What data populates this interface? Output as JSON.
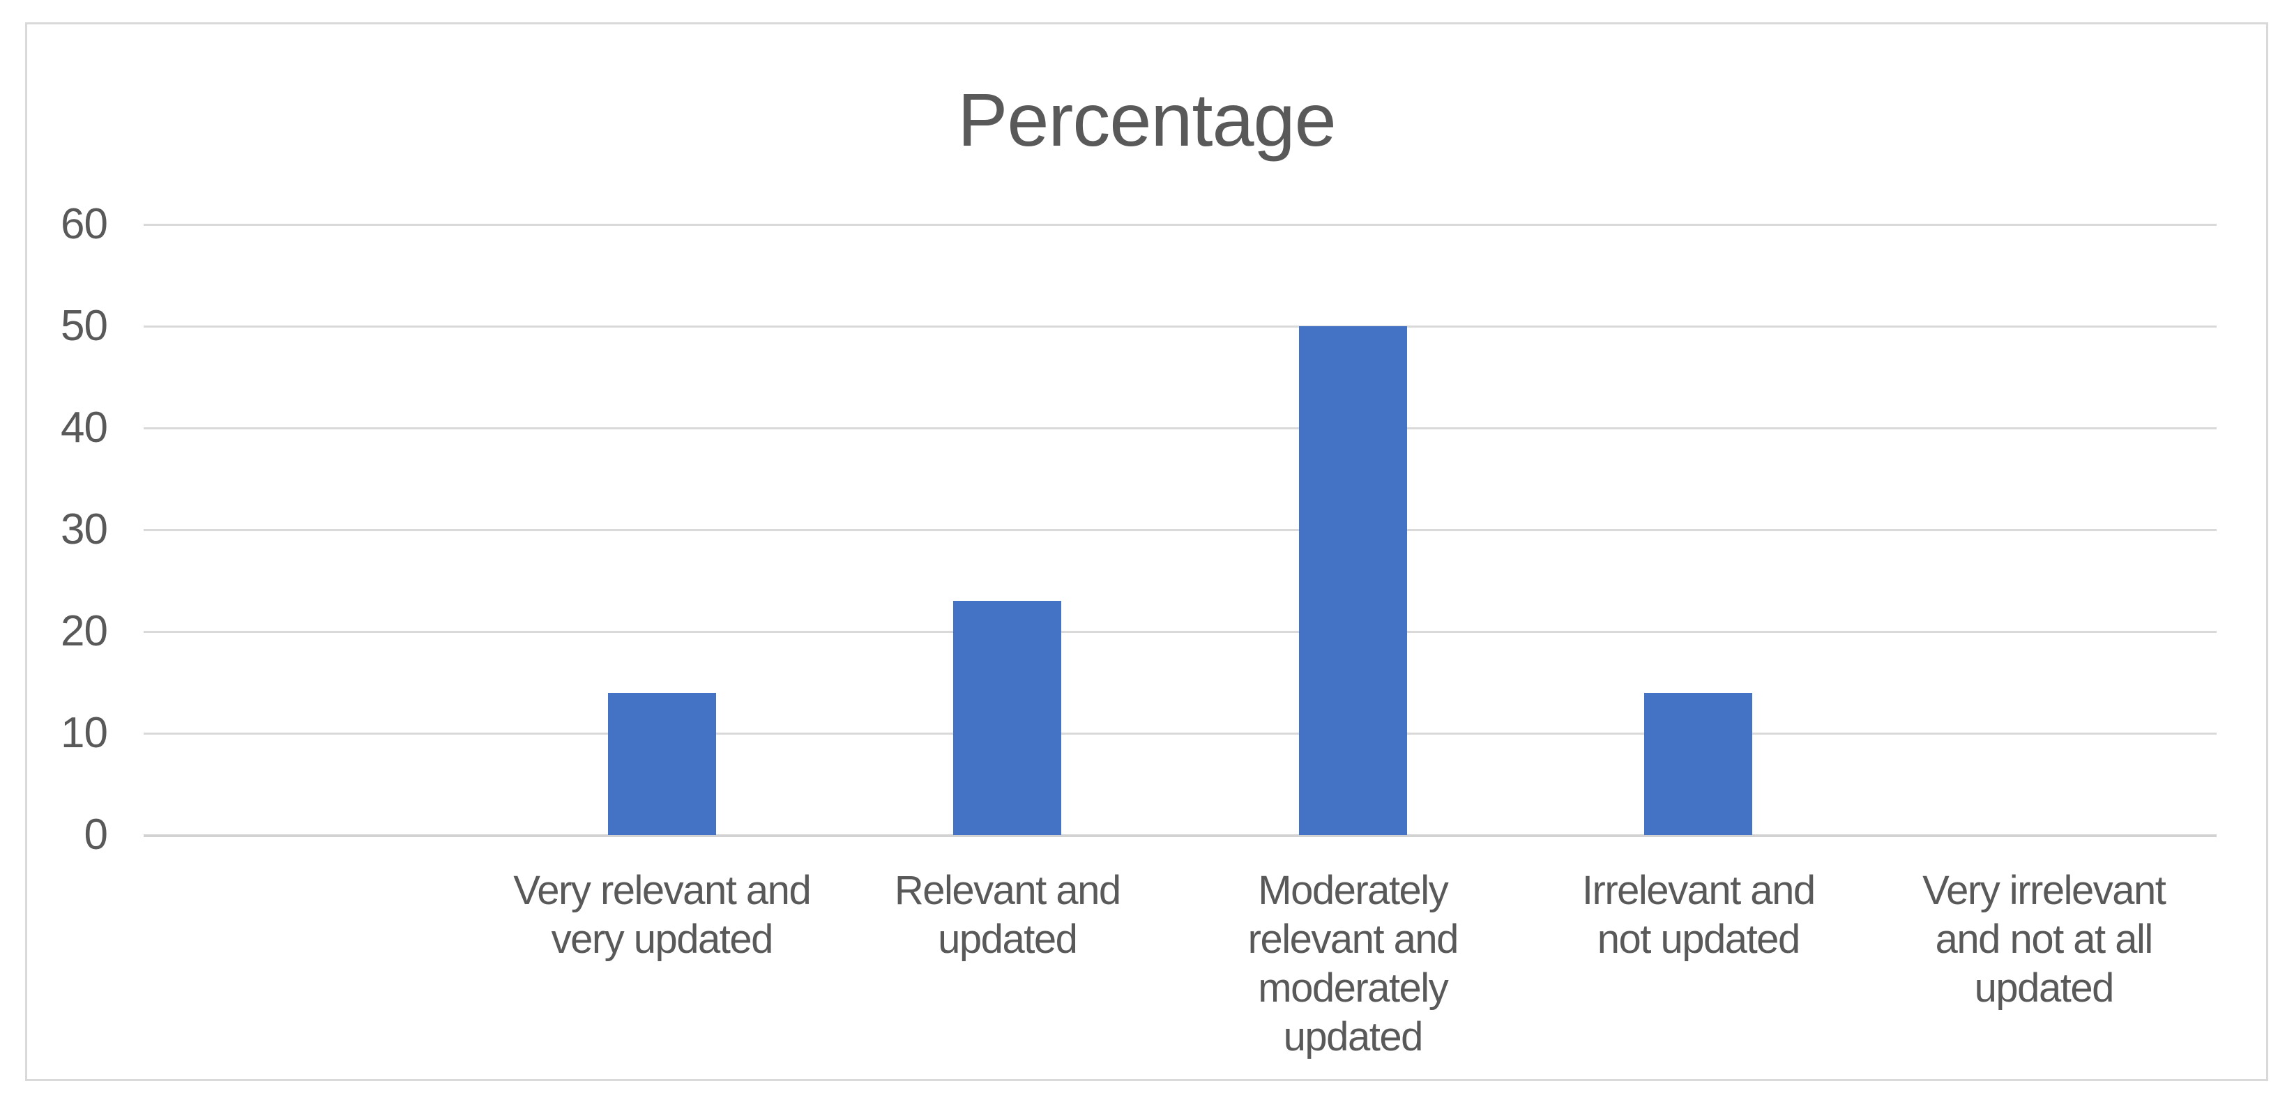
{
  "chart_data": {
    "type": "bar",
    "title": "Percentage",
    "categories": [
      "Very relevant and very updated",
      "Relevant and updated",
      "Moderately relevant and moderately updated",
      "Irrelevant and not updated",
      "Very irrelevant and not at all updated"
    ],
    "values": [
      14,
      23,
      50,
      14,
      0
    ],
    "xlabel": "",
    "ylabel": "",
    "ylim": [
      0,
      60
    ],
    "yticks": [
      0,
      10,
      20,
      30,
      40,
      50,
      60
    ],
    "grid": true,
    "legend_position": "none",
    "bar_color": "#4472C4",
    "gridline_color": "#D9D9D9",
    "axis_line_color": "#D2D2D2",
    "text_color": "#595959",
    "frame_border_color": "#D9D9D9",
    "background_color": "#FFFFFF",
    "layout": {
      "leading_empty_slot": true,
      "total_category_slots": 6,
      "category_label_lines": [
        [
          "Very relevant and",
          "very updated"
        ],
        [
          "Relevant and",
          "updated"
        ],
        [
          "Moderately",
          "relevant and",
          "moderately",
          "updated"
        ],
        [
          "Irrelevant and",
          "not updated"
        ],
        [
          "Very irrelevant",
          "and not at all",
          "updated"
        ]
      ]
    }
  }
}
